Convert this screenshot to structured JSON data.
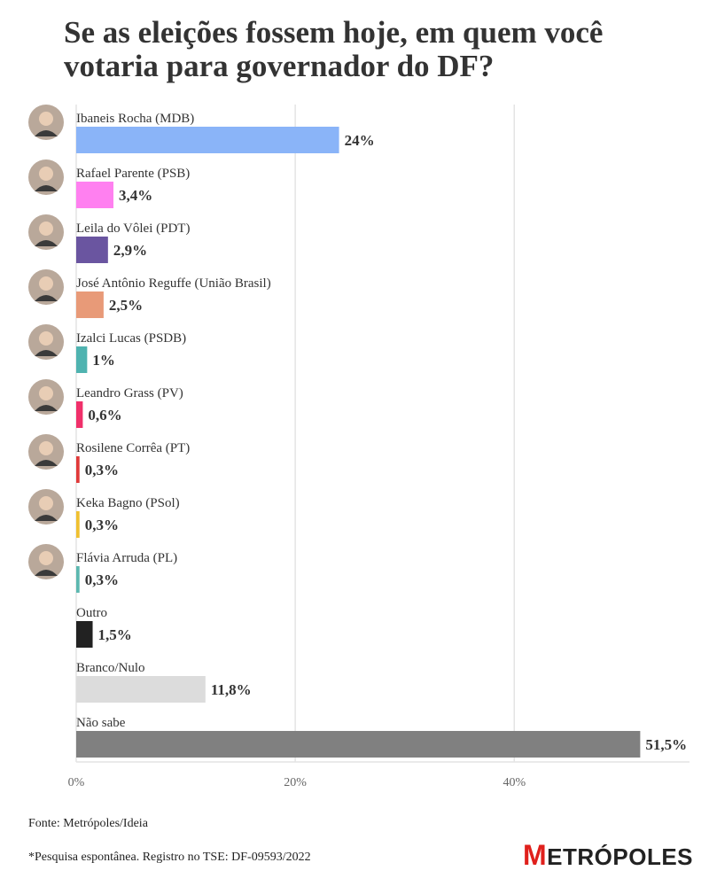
{
  "chart_data": {
    "type": "hbar",
    "title": "Se as eleições fossem hoje, em quem você votaria para governador do DF?",
    "categories": [
      "Ibaneis Rocha (MDB)",
      "Rafael Parente (PSB)",
      "Leila do Vôlei (PDT)",
      "José Antônio Reguffe (União Brasil)",
      "Izalci Lucas (PSDB)",
      "Leandro Grass (PV)",
      "Rosilene Corrêa (PT)",
      "Keka Bagno (PSol)",
      "Flávia Arruda (PL)",
      "Outro",
      "Branco/Nulo",
      "Não sabe"
    ],
    "values": [
      24,
      3.4,
      2.9,
      2.5,
      1,
      0.6,
      0.3,
      0.3,
      0.3,
      1.5,
      11.8,
      51.5
    ],
    "value_labels": [
      "24%",
      "3,4%",
      "2,9%",
      "2,5%",
      "1%",
      "0,6%",
      "0,3%",
      "0,3%",
      "0,3%",
      "1,5%",
      "11,8%",
      "51,5%"
    ],
    "colors": [
      "#8ab4f8",
      "#ff80f0",
      "#6a55a0",
      "#e89a78",
      "#4fb3b0",
      "#f0306a",
      "#e03a3a",
      "#f0c030",
      "#5cb8b0",
      "#222222",
      "#dcdcdc",
      "#808080"
    ],
    "xlim": [
      0,
      56
    ],
    "xticks": [
      {
        "value": 0,
        "label": "0%"
      },
      {
        "value": 20,
        "label": "20%"
      },
      {
        "value": 40,
        "label": "40%"
      }
    ],
    "grid": true,
    "source": "Fonte: Metrópoles/Ideia",
    "note": "*Pesquisa espontânea. Registro no TSE: DF-09593/2022",
    "brand": "METRÓPOLES"
  }
}
